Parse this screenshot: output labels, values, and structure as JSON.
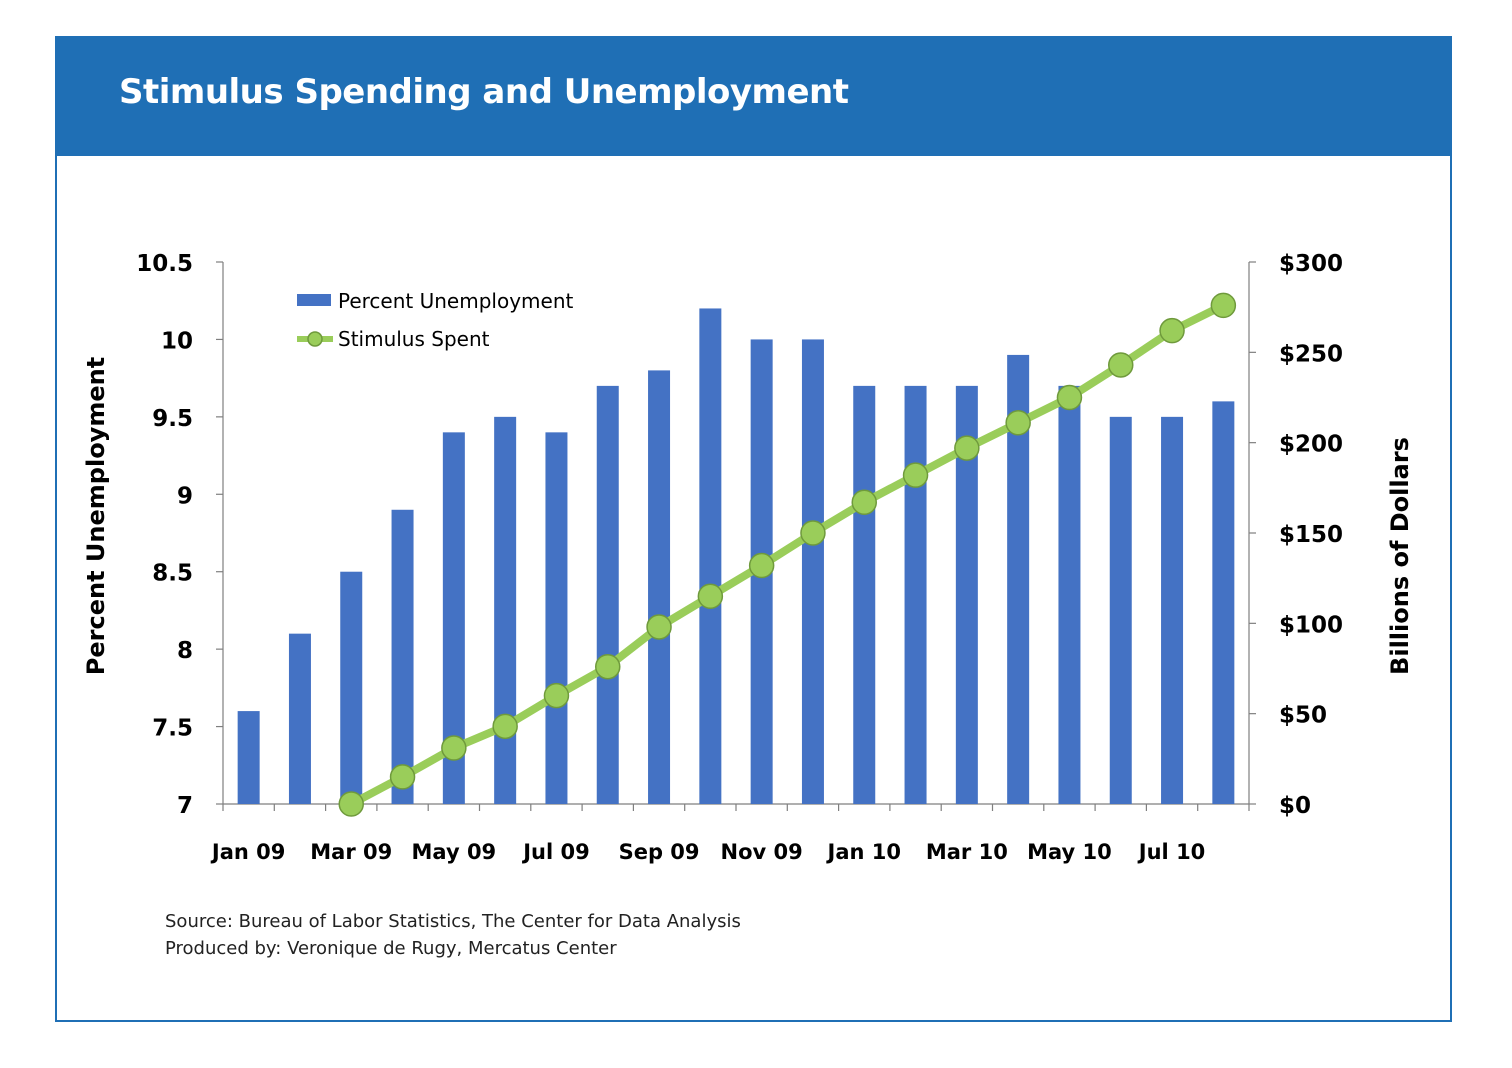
{
  "header": {
    "title": "Stimulus Spending and Unemployment"
  },
  "chart_data": {
    "type": "bar+line",
    "title": "Stimulus Spending and Unemployment",
    "categories": [
      "Jan 09",
      "Feb 09",
      "Mar 09",
      "Apr 09",
      "May 09",
      "Jun 09",
      "Jul 09",
      "Aug 09",
      "Sep 09",
      "Oct 09",
      "Nov 09",
      "Dec 09",
      "Jan 10",
      "Feb 10",
      "Mar 10",
      "Apr 10",
      "May 10",
      "Jun 10",
      "Jul 10",
      "Aug 10"
    ],
    "x_tick_labels": [
      "Jan 09",
      "Mar 09",
      "May 09",
      "Jul 09",
      "Sep 09",
      "Nov 09",
      "Jan 10",
      "Mar 10",
      "May 10",
      "Jul 10"
    ],
    "series": [
      {
        "name": "Percent Unemployment",
        "kind": "bar",
        "axis": "left",
        "color": "#4472c4",
        "values": [
          7.6,
          8.1,
          8.5,
          8.9,
          9.4,
          9.5,
          9.4,
          9.7,
          9.8,
          10.2,
          10.0,
          10.0,
          9.7,
          9.7,
          9.7,
          9.9,
          9.7,
          9.5,
          9.5,
          9.6
        ]
      },
      {
        "name": "Stimulus Spent",
        "kind": "line",
        "axis": "right",
        "color": "#9acd5a",
        "values": [
          null,
          null,
          0,
          15,
          31,
          43,
          60,
          76,
          98,
          115,
          132,
          150,
          167,
          182,
          197,
          211,
          225,
          243,
          262,
          276
        ]
      }
    ],
    "y_left": {
      "label": "Percent Unemployment",
      "min": 7,
      "max": 10.5,
      "ticks": [
        7,
        7.5,
        8,
        8.5,
        9,
        9.5,
        10,
        10.5
      ],
      "tick_labels": [
        "7",
        "7.5",
        "8",
        "8.5",
        "9",
        "9.5",
        "10",
        "10.5"
      ]
    },
    "y_right": {
      "label": "Billions of Dollars",
      "min": 0,
      "max": 300,
      "ticks": [
        0,
        50,
        100,
        150,
        200,
        250,
        300
      ],
      "tick_labels": [
        "$0",
        "$50",
        "$100",
        "$150",
        "$200",
        "$250",
        "$300"
      ]
    },
    "legend": {
      "position": "top-left",
      "entries": [
        "Percent Unemployment",
        "Stimulus Spent"
      ]
    },
    "grid": false
  },
  "footer": {
    "source_line": "Source: Bureau of Labor Statistics, The Center for Data Analysis",
    "produced_line": "Produced by: Veronique de Rugy, Mercatus Center"
  }
}
